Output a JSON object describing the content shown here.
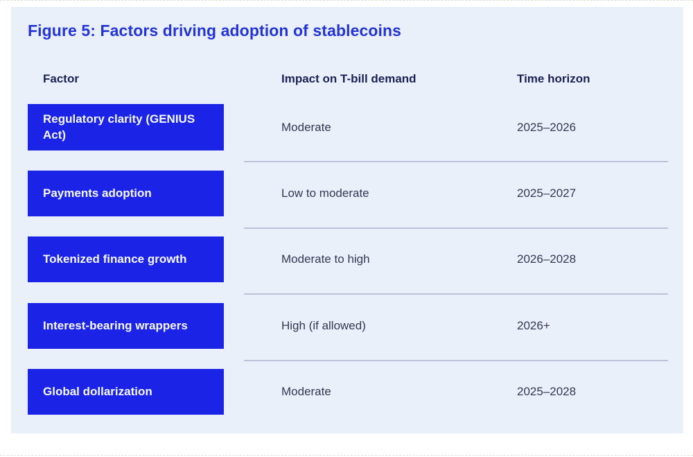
{
  "chart_data": {
    "type": "table",
    "title": "Figure 5: Factors driving adoption of stablecoins",
    "columns": [
      "Factor",
      "Impact on T-bill demand",
      "Time horizon"
    ],
    "rows": [
      [
        "Regulatory clarity (GENIUS Act)",
        "Moderate",
        "2025–2026"
      ],
      [
        "Payments adoption",
        "Low to moderate",
        "2025–2027"
      ],
      [
        "Tokenized finance growth",
        "Moderate to high",
        "2026–2028"
      ],
      [
        "Interest-bearing wrappers",
        "High (if allowed)",
        "2026+"
      ],
      [
        "Global dollarization",
        "Moderate",
        "2025–2028"
      ]
    ],
    "layout": {
      "legend": "none",
      "grid": "row dividers between data rows",
      "factor_cells_rendered_as": "solid blue boxes with white bold labels"
    }
  },
  "colors": {
    "panel_background": "#e9f0fa",
    "factor_box_blue": "#1b23e6",
    "factor_box_text": "#f7f9ff",
    "title_blue": "#2433d6",
    "header_navy": "#1b2150",
    "body_text": "#333851",
    "divider": "#bdc2da",
    "page_background": "#ffffff"
  }
}
